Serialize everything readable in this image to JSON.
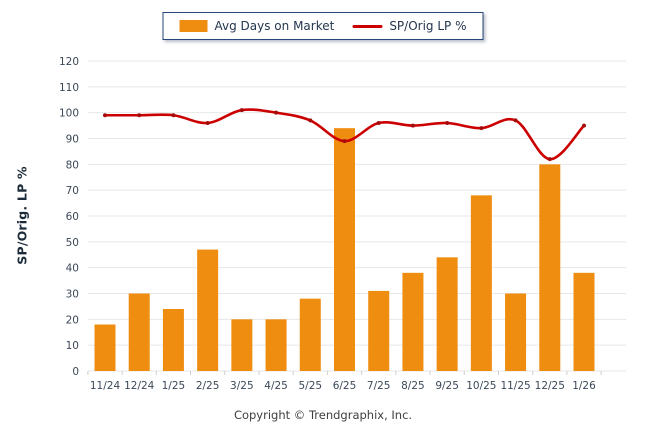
{
  "chart_data": {
    "type": "combo-bar-line",
    "categories": [
      "11/24",
      "12/24",
      "1/25",
      "2/25",
      "3/25",
      "4/25",
      "5/25",
      "6/25",
      "7/25",
      "8/25",
      "9/25",
      "10/25",
      "11/25",
      "12/25",
      "1/26"
    ],
    "series": [
      {
        "name": "Avg Days on Market",
        "type": "bar",
        "color": "#EF8D10",
        "values": [
          18,
          30,
          24,
          47,
          20,
          20,
          28,
          94,
          31,
          38,
          44,
          68,
          30,
          80,
          38
        ]
      },
      {
        "name": "SP/Orig LP %",
        "type": "line",
        "color": "#CC0000",
        "marker_color": "#A50D0D",
        "values": [
          99,
          99,
          99,
          96,
          101,
          100,
          97,
          89,
          96,
          95,
          96,
          94,
          97,
          82,
          95
        ]
      }
    ],
    "title": "",
    "xlabel": "",
    "ylabel": "SP/Orig. LP %",
    "ylim": [
      0,
      120
    ],
    "ytick_step": 10,
    "grid": true,
    "gridline_color": "#E7E7E7",
    "tick_mark_color": "#CFCFCF",
    "legend_position": "top-center"
  },
  "legend": {
    "items": [
      {
        "label": "Avg Days on Market",
        "swatch": "bar-swatch",
        "color": "#EF8D10"
      },
      {
        "label": "SP/Orig LP %",
        "swatch": "line-swatch",
        "color": "#CC0000"
      }
    ]
  },
  "footer": {
    "copyright": "Copyright © Trendgraphix, Inc."
  }
}
